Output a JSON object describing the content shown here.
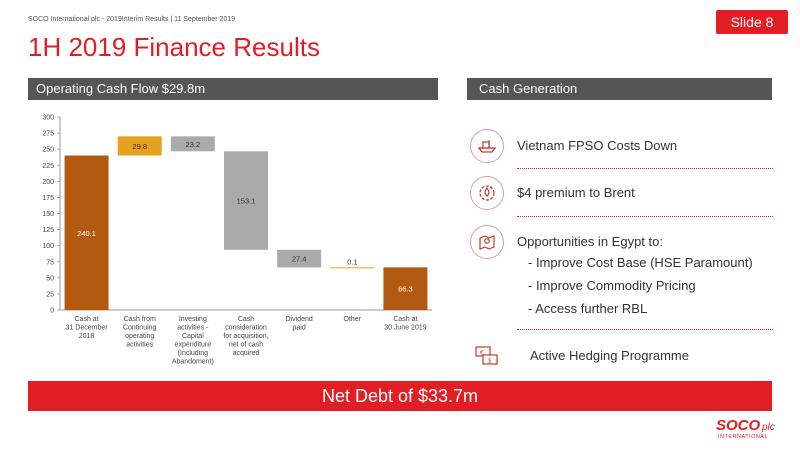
{
  "header": {
    "meta": "SOCO International plc - 2019Interim Results  |  11 September 2019",
    "slide_label": "Slide 8",
    "title": "1H 2019 Finance Results"
  },
  "left_panel": {
    "title": "Operating Cash Flow $29.8m"
  },
  "right_panel": {
    "title": "Cash Generation",
    "items": [
      {
        "text": "Vietnam FPSO Costs Down",
        "icon": "ship-icon"
      },
      {
        "text": "$4 premium to Brent",
        "icon": "oil-drop-gear-icon"
      },
      {
        "text": "Opportunities in Egypt to:",
        "icon": "map-pin-icon"
      },
      {
        "text": "Active Hedging Programme",
        "icon": "money-exchange-icon"
      }
    ],
    "sub_items": [
      "-  Improve Cost Base (HSE Paramount)",
      "-  Improve Commodity Pricing",
      "-  Access further RBL"
    ]
  },
  "footer": {
    "net_debt": "Net Debt of $33.7m",
    "logo_main": "SOCO",
    "logo_sub": "plc",
    "logo_bottom": "INTERNATIONAL"
  },
  "colors": {
    "accent": "#e31d24",
    "brown": "#b35a12",
    "orange": "#e8a020",
    "grey": "#aaaaaa",
    "band": "#555555"
  },
  "chart_data": {
    "type": "bar",
    "subtype": "waterfall",
    "ylim": [
      0,
      300
    ],
    "ytick_step": 25,
    "bars": [
      {
        "label": [
          "Cash at",
          "31 December",
          "2018"
        ],
        "bottom": 0,
        "top": 240.1,
        "value": "240.1",
        "kind": "total"
      },
      {
        "label": [
          "Cash from",
          "Continuing",
          "operating",
          "activities"
        ],
        "bottom": 240.1,
        "top": 269.9,
        "value": "29.8",
        "kind": "increase"
      },
      {
        "label": [
          "Investing",
          "activities -",
          "Capital",
          "expenditure",
          "(Including",
          "Abandoment)"
        ],
        "bottom": 246.7,
        "top": 269.9,
        "value": "23.2",
        "kind": "decrease"
      },
      {
        "label": [
          "Cash",
          "consideration",
          "for acquisition,",
          "net of cash",
          "acquired"
        ],
        "bottom": 93.6,
        "top": 246.7,
        "value": "153.1",
        "kind": "decrease"
      },
      {
        "label": [
          "Dividend",
          "paid"
        ],
        "bottom": 66.2,
        "top": 93.6,
        "value": "27.4",
        "kind": "decrease"
      },
      {
        "label": [
          "Other"
        ],
        "bottom": 66.2,
        "top": 66.3,
        "value": "0.1",
        "kind": "increase"
      },
      {
        "label": [
          "Cash at",
          "30 June 2019"
        ],
        "bottom": 0,
        "top": 66.3,
        "value": "66.3",
        "kind": "total"
      }
    ]
  }
}
